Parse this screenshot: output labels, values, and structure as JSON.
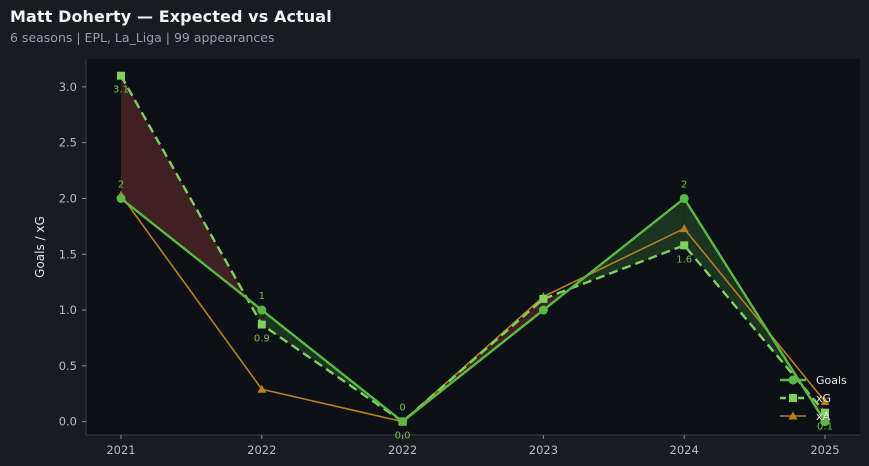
{
  "header": {
    "title": "Matt Doherty — Expected vs Actual",
    "subtitle": "6 seasons | EPL, La_Liga | 99 appearances"
  },
  "chart_data": {
    "type": "line",
    "categories": [
      "2021",
      "2022",
      "2022",
      "2023",
      "2024",
      "2025"
    ],
    "ylabel": "Goals / xG",
    "ylim": [
      -0.12,
      3.25
    ],
    "yticks": [
      0.0,
      0.5,
      1.0,
      1.5,
      2.0,
      2.5,
      3.0
    ],
    "ytick_labels": [
      "0.0",
      "0.5",
      "1.0",
      "1.5",
      "2.0",
      "2.5",
      "3.0"
    ],
    "grid": false,
    "legend_position": "bottom-right",
    "series": [
      {
        "name": "Goals",
        "values": [
          2,
          1,
          0,
          1,
          2,
          0
        ],
        "color": "#5ab944",
        "marker": "circle",
        "dash": "solid",
        "labels": [
          "2",
          "1",
          "0",
          "",
          "2",
          ""
        ]
      },
      {
        "name": "xG",
        "values": [
          3.1,
          0.87,
          0.0,
          1.1,
          1.58,
          0.08
        ],
        "color": "#7fd05e",
        "marker": "square",
        "dash": "dashed",
        "labels": [
          "3.1",
          "0.9",
          "0.0",
          "",
          "1.6",
          "0.1"
        ]
      },
      {
        "name": "xA",
        "values": [
          2.03,
          0.29,
          0.0,
          1.12,
          1.73,
          0.18
        ],
        "color": "#b5801f",
        "marker": "triangle",
        "dash": "solid",
        "labels": [
          "",
          "",
          "",
          "",
          "",
          ""
        ]
      }
    ],
    "fill_colors": {
      "under": "#4a2326",
      "over": "#1f3a22"
    }
  }
}
